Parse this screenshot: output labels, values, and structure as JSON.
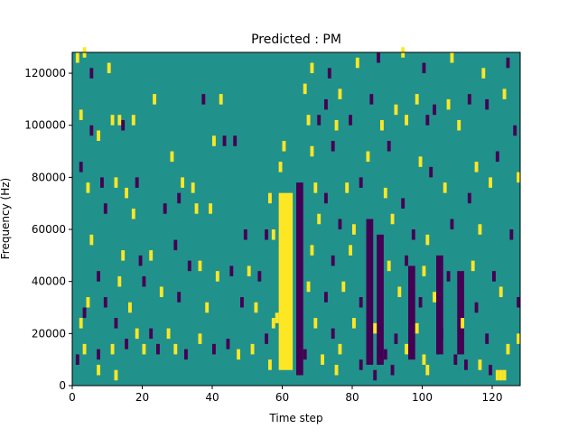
{
  "chart_data": {
    "type": "heatmap",
    "title": "Predicted : PM",
    "xlabel": "Time step",
    "ylabel": "Frequency (Hz)",
    "xlim": [
      0,
      128
    ],
    "ylim": [
      0,
      128000
    ],
    "xticks": [
      "0",
      "20",
      "40",
      "60",
      "80",
      "100",
      "120"
    ],
    "yticks": [
      "0",
      "20000",
      "40000",
      "60000",
      "80000",
      "100000",
      "120000"
    ],
    "colormap": "viridis",
    "colors": {
      "background": "#21918c",
      "low": "#440154",
      "high": "#fde725"
    },
    "grid": false,
    "legend": "none",
    "bands": [
      {
        "x0": 59,
        "x1": 63,
        "f0": 6000,
        "f1": 74000,
        "level": "high"
      },
      {
        "x0": 64,
        "x1": 66,
        "f0": 4000,
        "f1": 78000,
        "level": "low"
      },
      {
        "x0": 84,
        "x1": 86,
        "f0": 8000,
        "f1": 64000,
        "level": "low"
      },
      {
        "x0": 87,
        "x1": 89,
        "f0": 8000,
        "f1": 58000,
        "level": "low"
      },
      {
        "x0": 96,
        "x1": 98,
        "f0": 10000,
        "f1": 46000,
        "level": "low"
      },
      {
        "x0": 104,
        "x1": 106,
        "f0": 12000,
        "f1": 50000,
        "level": "low"
      },
      {
        "x0": 110,
        "x1": 112,
        "f0": 12000,
        "f1": 44000,
        "level": "low"
      }
    ],
    "cells": [
      {
        "x": 1,
        "f": 124000,
        "level": "high"
      },
      {
        "x": 3,
        "f": 126000,
        "level": "high"
      },
      {
        "x": 5,
        "f": 118000,
        "level": "low"
      },
      {
        "x": 10,
        "f": 120000,
        "level": "high"
      },
      {
        "x": 2,
        "f": 102000,
        "level": "high"
      },
      {
        "x": 5,
        "f": 96000,
        "level": "low"
      },
      {
        "x": 7,
        "f": 94000,
        "level": "high"
      },
      {
        "x": 11,
        "f": 100000,
        "level": "high"
      },
      {
        "x": 13,
        "f": 100000,
        "level": "high"
      },
      {
        "x": 14,
        "f": 98000,
        "level": "low"
      },
      {
        "x": 17,
        "f": 100000,
        "level": "high"
      },
      {
        "x": 23,
        "f": 108000,
        "level": "high"
      },
      {
        "x": 37,
        "f": 108000,
        "level": "low"
      },
      {
        "x": 42,
        "f": 108000,
        "level": "high"
      },
      {
        "x": 40,
        "f": 92000,
        "level": "high"
      },
      {
        "x": 43,
        "f": 92000,
        "level": "low"
      },
      {
        "x": 46,
        "f": 92000,
        "level": "low"
      },
      {
        "x": 28,
        "f": 86000,
        "level": "high"
      },
      {
        "x": 2,
        "f": 82000,
        "level": "low"
      },
      {
        "x": 4,
        "f": 74000,
        "level": "high"
      },
      {
        "x": 8,
        "f": 76000,
        "level": "low"
      },
      {
        "x": 12,
        "f": 76000,
        "level": "high"
      },
      {
        "x": 18,
        "f": 76000,
        "level": "low"
      },
      {
        "x": 15,
        "f": 72000,
        "level": "high"
      },
      {
        "x": 31,
        "f": 76000,
        "level": "high"
      },
      {
        "x": 34,
        "f": 74000,
        "level": "high"
      },
      {
        "x": 30,
        "f": 70000,
        "level": "low"
      },
      {
        "x": 26,
        "f": 66000,
        "level": "low"
      },
      {
        "x": 9,
        "f": 66000,
        "level": "low"
      },
      {
        "x": 17,
        "f": 64000,
        "level": "high"
      },
      {
        "x": 35,
        "f": 66000,
        "level": "high"
      },
      {
        "x": 39,
        "f": 66000,
        "level": "high"
      },
      {
        "x": 56,
        "f": 70000,
        "level": "high"
      },
      {
        "x": 49,
        "f": 56000,
        "level": "low"
      },
      {
        "x": 55,
        "f": 56000,
        "level": "low"
      },
      {
        "x": 57,
        "f": 56000,
        "level": "high"
      },
      {
        "x": 5,
        "f": 54000,
        "level": "high"
      },
      {
        "x": 19,
        "f": 46000,
        "level": "low"
      },
      {
        "x": 14,
        "f": 48000,
        "level": "high"
      },
      {
        "x": 22,
        "f": 48000,
        "level": "high"
      },
      {
        "x": 29,
        "f": 52000,
        "level": "low"
      },
      {
        "x": 33,
        "f": 44000,
        "level": "low"
      },
      {
        "x": 36,
        "f": 44000,
        "level": "high"
      },
      {
        "x": 41,
        "f": 40000,
        "level": "high"
      },
      {
        "x": 45,
        "f": 42000,
        "level": "low"
      },
      {
        "x": 50,
        "f": 42000,
        "level": "high"
      },
      {
        "x": 53,
        "f": 40000,
        "level": "low"
      },
      {
        "x": 7,
        "f": 40000,
        "level": "low"
      },
      {
        "x": 13,
        "f": 38000,
        "level": "high"
      },
      {
        "x": 20,
        "f": 38000,
        "level": "low"
      },
      {
        "x": 25,
        "f": 34000,
        "level": "high"
      },
      {
        "x": 4,
        "f": 30000,
        "level": "high"
      },
      {
        "x": 3,
        "f": 26000,
        "level": "low"
      },
      {
        "x": 9,
        "f": 30000,
        "level": "low"
      },
      {
        "x": 16,
        "f": 28000,
        "level": "high"
      },
      {
        "x": 30,
        "f": 32000,
        "level": "low"
      },
      {
        "x": 38,
        "f": 28000,
        "level": "high"
      },
      {
        "x": 48,
        "f": 30000,
        "level": "low"
      },
      {
        "x": 52,
        "f": 28000,
        "level": "high"
      },
      {
        "x": 2,
        "f": 22000,
        "level": "high"
      },
      {
        "x": 12,
        "f": 22000,
        "level": "low"
      },
      {
        "x": 18,
        "f": 18000,
        "level": "high"
      },
      {
        "x": 22,
        "f": 18000,
        "level": "low"
      },
      {
        "x": 27,
        "f": 18000,
        "level": "high"
      },
      {
        "x": 36,
        "f": 16000,
        "level": "high"
      },
      {
        "x": 44,
        "f": 14000,
        "level": "low"
      },
      {
        "x": 55,
        "f": 16000,
        "level": "low"
      },
      {
        "x": 57,
        "f": 22000,
        "level": "high"
      },
      {
        "x": 3,
        "f": 12000,
        "level": "high"
      },
      {
        "x": 7,
        "f": 10000,
        "level": "low"
      },
      {
        "x": 11,
        "f": 12000,
        "level": "high"
      },
      {
        "x": 15,
        "f": 14000,
        "level": "low"
      },
      {
        "x": 20,
        "f": 12000,
        "level": "high"
      },
      {
        "x": 24,
        "f": 12000,
        "level": "low"
      },
      {
        "x": 29,
        "f": 12000,
        "level": "high"
      },
      {
        "x": 32,
        "f": 10000,
        "level": "low"
      },
      {
        "x": 40,
        "f": 12000,
        "level": "low"
      },
      {
        "x": 47,
        "f": 10000,
        "level": "high"
      },
      {
        "x": 51,
        "f": 12000,
        "level": "high"
      },
      {
        "x": 7,
        "f": 4000,
        "level": "high"
      },
      {
        "x": 12,
        "f": 2000,
        "level": "high"
      },
      {
        "x": 1,
        "f": 8000,
        "level": "low"
      },
      {
        "x": 56,
        "f": 6000,
        "level": "high"
      },
      {
        "x": 59,
        "f": 82000,
        "level": "high"
      },
      {
        "x": 60,
        "f": 90000,
        "level": "high"
      },
      {
        "x": 58,
        "f": 24000,
        "level": "high"
      },
      {
        "x": 68,
        "f": 120000,
        "level": "high"
      },
      {
        "x": 73,
        "f": 118000,
        "level": "low"
      },
      {
        "x": 81,
        "f": 122000,
        "level": "high"
      },
      {
        "x": 87,
        "f": 124000,
        "level": "low"
      },
      {
        "x": 94,
        "f": 126000,
        "level": "high"
      },
      {
        "x": 100,
        "f": 120000,
        "level": "low"
      },
      {
        "x": 108,
        "f": 124000,
        "level": "high"
      },
      {
        "x": 117,
        "f": 118000,
        "level": "high"
      },
      {
        "x": 124,
        "f": 122000,
        "level": "low"
      },
      {
        "x": 66,
        "f": 112000,
        "level": "high"
      },
      {
        "x": 72,
        "f": 106000,
        "level": "low"
      },
      {
        "x": 76,
        "f": 110000,
        "level": "high"
      },
      {
        "x": 85,
        "f": 108000,
        "level": "low"
      },
      {
        "x": 92,
        "f": 104000,
        "level": "high"
      },
      {
        "x": 98,
        "f": 108000,
        "level": "high"
      },
      {
        "x": 103,
        "f": 104000,
        "level": "low"
      },
      {
        "x": 107,
        "f": 106000,
        "level": "high"
      },
      {
        "x": 113,
        "f": 108000,
        "level": "low"
      },
      {
        "x": 118,
        "f": 106000,
        "level": "low"
      },
      {
        "x": 123,
        "f": 110000,
        "level": "high"
      },
      {
        "x": 67,
        "f": 100000,
        "level": "high"
      },
      {
        "x": 70,
        "f": 100000,
        "level": "low"
      },
      {
        "x": 75,
        "f": 98000,
        "level": "high"
      },
      {
        "x": 79,
        "f": 100000,
        "level": "low"
      },
      {
        "x": 88,
        "f": 98000,
        "level": "high"
      },
      {
        "x": 95,
        "f": 100000,
        "level": "high"
      },
      {
        "x": 101,
        "f": 100000,
        "level": "low"
      },
      {
        "x": 110,
        "f": 98000,
        "level": "high"
      },
      {
        "x": 126,
        "f": 96000,
        "level": "low"
      },
      {
        "x": 68,
        "f": 88000,
        "level": "high"
      },
      {
        "x": 74,
        "f": 90000,
        "level": "low"
      },
      {
        "x": 84,
        "f": 86000,
        "level": "high"
      },
      {
        "x": 90,
        "f": 90000,
        "level": "low"
      },
      {
        "x": 99,
        "f": 84000,
        "level": "high"
      },
      {
        "x": 102,
        "f": 80000,
        "level": "low"
      },
      {
        "x": 115,
        "f": 82000,
        "level": "high"
      },
      {
        "x": 121,
        "f": 86000,
        "level": "low"
      },
      {
        "x": 127,
        "f": 78000,
        "level": "high"
      },
      {
        "x": 69,
        "f": 74000,
        "level": "high"
      },
      {
        "x": 72,
        "f": 70000,
        "level": "low"
      },
      {
        "x": 78,
        "f": 74000,
        "level": "high"
      },
      {
        "x": 82,
        "f": 76000,
        "level": "low"
      },
      {
        "x": 89,
        "f": 72000,
        "level": "high"
      },
      {
        "x": 94,
        "f": 68000,
        "level": "low"
      },
      {
        "x": 106,
        "f": 74000,
        "level": "high"
      },
      {
        "x": 113,
        "f": 70000,
        "level": "low"
      },
      {
        "x": 119,
        "f": 76000,
        "level": "high"
      },
      {
        "x": 70,
        "f": 62000,
        "level": "high"
      },
      {
        "x": 76,
        "f": 60000,
        "level": "low"
      },
      {
        "x": 80,
        "f": 58000,
        "level": "high"
      },
      {
        "x": 91,
        "f": 62000,
        "level": "high"
      },
      {
        "x": 97,
        "f": 56000,
        "level": "low"
      },
      {
        "x": 101,
        "f": 54000,
        "level": "high"
      },
      {
        "x": 108,
        "f": 60000,
        "level": "low"
      },
      {
        "x": 116,
        "f": 58000,
        "level": "high"
      },
      {
        "x": 125,
        "f": 56000,
        "level": "low"
      },
      {
        "x": 68,
        "f": 50000,
        "level": "high"
      },
      {
        "x": 74,
        "f": 46000,
        "level": "low"
      },
      {
        "x": 79,
        "f": 50000,
        "level": "high"
      },
      {
        "x": 90,
        "f": 44000,
        "level": "high"
      },
      {
        "x": 95,
        "f": 46000,
        "level": "low"
      },
      {
        "x": 100,
        "f": 42000,
        "level": "high"
      },
      {
        "x": 107,
        "f": 40000,
        "level": "low"
      },
      {
        "x": 114,
        "f": 44000,
        "level": "high"
      },
      {
        "x": 120,
        "f": 40000,
        "level": "low"
      },
      {
        "x": 67,
        "f": 36000,
        "level": "high"
      },
      {
        "x": 72,
        "f": 32000,
        "level": "low"
      },
      {
        "x": 77,
        "f": 36000,
        "level": "high"
      },
      {
        "x": 82,
        "f": 30000,
        "level": "low"
      },
      {
        "x": 93,
        "f": 34000,
        "level": "high"
      },
      {
        "x": 99,
        "f": 30000,
        "level": "low"
      },
      {
        "x": 103,
        "f": 32000,
        "level": "high"
      },
      {
        "x": 115,
        "f": 28000,
        "level": "low"
      },
      {
        "x": 122,
        "f": 34000,
        "level": "high"
      },
      {
        "x": 127,
        "f": 30000,
        "level": "low"
      },
      {
        "x": 69,
        "f": 22000,
        "level": "high"
      },
      {
        "x": 74,
        "f": 18000,
        "level": "low"
      },
      {
        "x": 80,
        "f": 22000,
        "level": "high"
      },
      {
        "x": 86,
        "f": 20000,
        "level": "high"
      },
      {
        "x": 92,
        "f": 16000,
        "level": "low"
      },
      {
        "x": 98,
        "f": 20000,
        "level": "high"
      },
      {
        "x": 105,
        "f": 18000,
        "level": "low"
      },
      {
        "x": 111,
        "f": 22000,
        "level": "high"
      },
      {
        "x": 118,
        "f": 16000,
        "level": "low"
      },
      {
        "x": 66,
        "f": 10000,
        "level": "low"
      },
      {
        "x": 71,
        "f": 8000,
        "level": "high"
      },
      {
        "x": 76,
        "f": 12000,
        "level": "high"
      },
      {
        "x": 82,
        "f": 6000,
        "level": "low"
      },
      {
        "x": 89,
        "f": 10000,
        "level": "low"
      },
      {
        "x": 95,
        "f": 12000,
        "level": "high"
      },
      {
        "x": 100,
        "f": 8000,
        "level": "high"
      },
      {
        "x": 104,
        "f": 12000,
        "level": "low"
      },
      {
        "x": 109,
        "f": 8000,
        "level": "low"
      },
      {
        "x": 116,
        "f": 6000,
        "level": "high"
      },
      {
        "x": 124,
        "f": 12000,
        "level": "high"
      },
      {
        "x": 127,
        "f": 16000,
        "level": "high"
      },
      {
        "x": 75,
        "f": 4000,
        "level": "high"
      },
      {
        "x": 86,
        "f": 2000,
        "level": "low"
      },
      {
        "x": 91,
        "f": 4000,
        "level": "low"
      },
      {
        "x": 101,
        "f": 4000,
        "level": "high"
      },
      {
        "x": 112,
        "f": 6000,
        "level": "low"
      },
      {
        "x": 119,
        "f": 4000,
        "level": "low"
      },
      {
        "x": 121,
        "f": 2000,
        "level": "high"
      },
      {
        "x": 122,
        "f": 2000,
        "level": "high"
      },
      {
        "x": 123,
        "f": 2000,
        "level": "high"
      }
    ]
  }
}
